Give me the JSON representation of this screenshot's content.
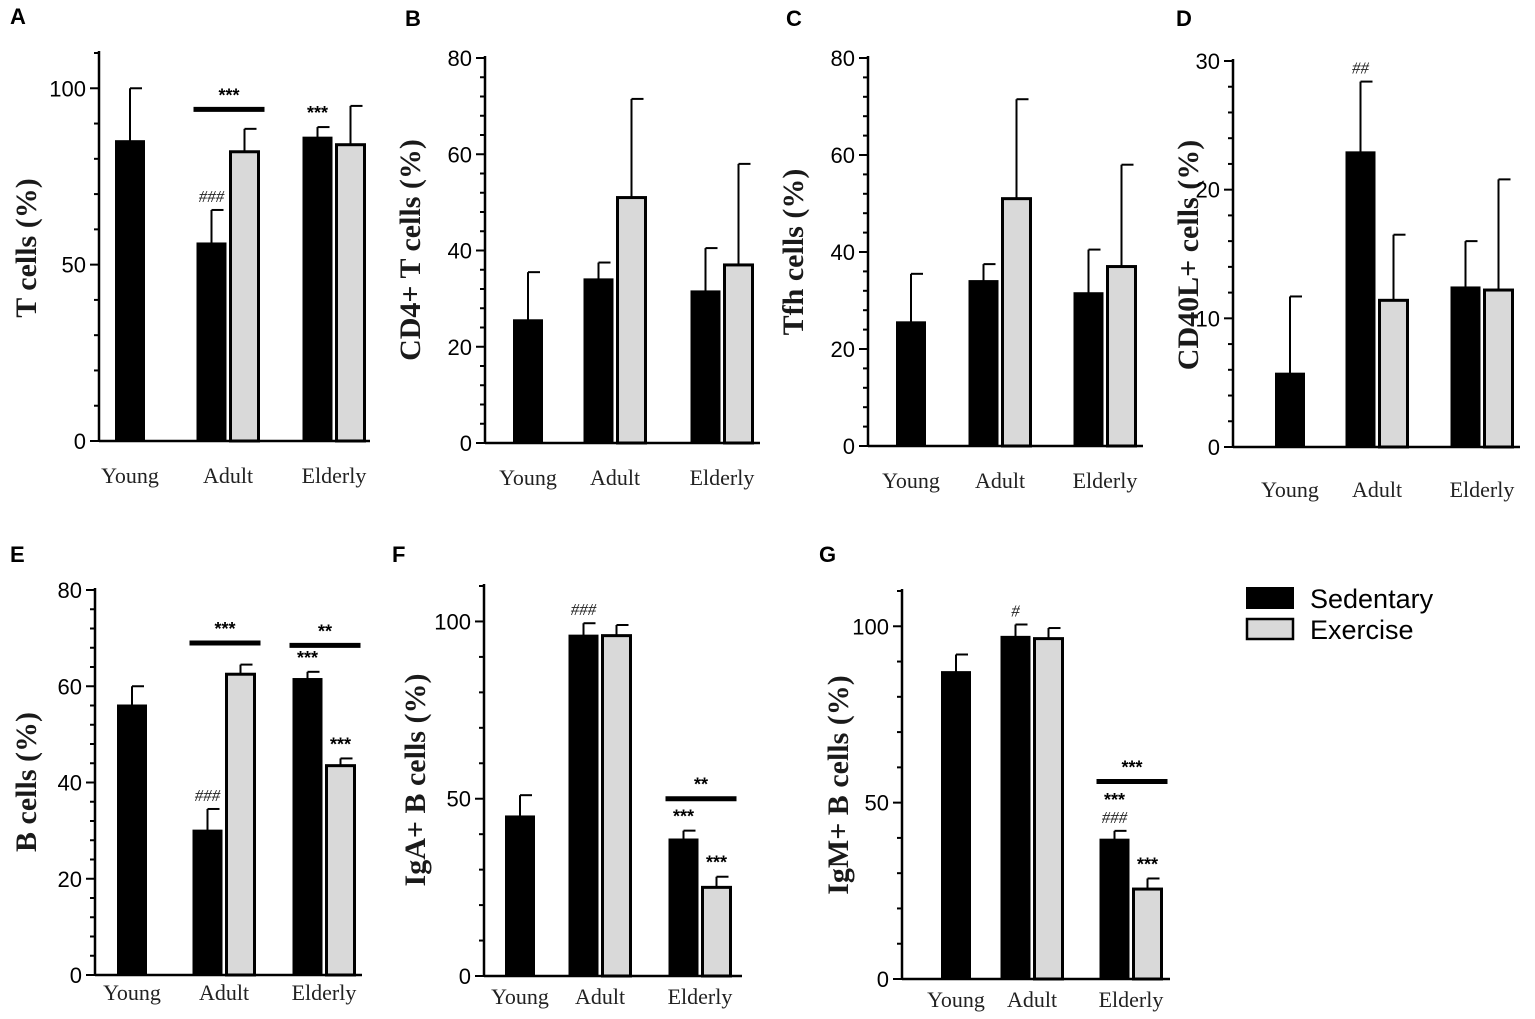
{
  "legend": {
    "items": [
      {
        "label": "Sedentary",
        "color": "#000000"
      },
      {
        "label": "Exercise",
        "color": "#d9d9d9"
      }
    ]
  },
  "chart_data": [
    {
      "panel": "A",
      "type": "bar",
      "ylabel": "T cells (%)",
      "ylim": [
        0,
        110
      ],
      "yticks": [
        0,
        50,
        100
      ],
      "categories": [
        "Young",
        "Adult",
        "Elderly"
      ],
      "series": [
        {
          "name": "Sedentary",
          "values": [
            85,
            56,
            86
          ],
          "errors": [
            15,
            9.5,
            3
          ]
        },
        {
          "name": "Exercise",
          "values": [
            null,
            82,
            84
          ],
          "errors": [
            null,
            6.5,
            11
          ]
        }
      ],
      "annotations": [
        {
          "text": "***",
          "kind": "bracket",
          "group": 1,
          "y": 94
        },
        {
          "text": "###",
          "kind": "mark",
          "group": 1,
          "series": 0
        },
        {
          "text": "***",
          "kind": "mark",
          "group": 2,
          "series": 0
        }
      ]
    },
    {
      "panel": "B",
      "type": "bar",
      "ylabel": "CD4+ T cells (%)",
      "ylim": [
        0,
        80
      ],
      "yticks": [
        0,
        20,
        40,
        60,
        80
      ],
      "categories": [
        "Young",
        "Adult",
        "Elderly"
      ],
      "series": [
        {
          "name": "Sedentary",
          "values": [
            25.5,
            34,
            31.5
          ],
          "errors": [
            10,
            3.5,
            9
          ]
        },
        {
          "name": "Exercise",
          "values": [
            null,
            51,
            37
          ],
          "errors": [
            null,
            20.5,
            21
          ]
        }
      ],
      "annotations": []
    },
    {
      "panel": "C",
      "type": "bar",
      "ylabel": "Tfh cells (%)",
      "ylim": [
        0,
        80
      ],
      "yticks": [
        0,
        20,
        40,
        60,
        80
      ],
      "categories": [
        "Young",
        "Adult",
        "Elderly"
      ],
      "series": [
        {
          "name": "Sedentary",
          "values": [
            25.5,
            34,
            31.5
          ],
          "errors": [
            10,
            3.5,
            9
          ]
        },
        {
          "name": "Exercise",
          "values": [
            null,
            51,
            37
          ],
          "errors": [
            null,
            20.5,
            21
          ]
        }
      ],
      "annotations": []
    },
    {
      "panel": "D",
      "type": "bar",
      "ylabel": "CD40L+ cells (%)",
      "ylim": [
        0,
        30
      ],
      "yticks": [
        0,
        10,
        20,
        30
      ],
      "categories": [
        "Young",
        "Adult",
        "Elderly"
      ],
      "series": [
        {
          "name": "Sedentary",
          "values": [
            5.7,
            22.9,
            12.4
          ],
          "errors": [
            6,
            5.5,
            3.6
          ]
        },
        {
          "name": "Exercise",
          "values": [
            null,
            11.4,
            12.2
          ],
          "errors": [
            null,
            5.1,
            8.6
          ]
        }
      ],
      "annotations": [
        {
          "text": "##",
          "kind": "mark",
          "group": 1,
          "series": 0
        }
      ]
    },
    {
      "panel": "E",
      "type": "bar",
      "ylabel": "B cells (%)",
      "ylim": [
        0,
        80
      ],
      "yticks": [
        0,
        20,
        40,
        60,
        80
      ],
      "categories": [
        "Young",
        "Adult",
        "Elderly"
      ],
      "series": [
        {
          "name": "Sedentary",
          "values": [
            56,
            30,
            61.5
          ],
          "errors": [
            4,
            4.5,
            1.5
          ]
        },
        {
          "name": "Exercise",
          "values": [
            null,
            62.5,
            43.5
          ],
          "errors": [
            null,
            2,
            1.5
          ]
        }
      ],
      "annotations": [
        {
          "text": "***",
          "kind": "bracket",
          "group": 1,
          "y": 69
        },
        {
          "text": "**",
          "kind": "bracket",
          "group": 2,
          "y": 68.5
        },
        {
          "text": "###",
          "kind": "mark",
          "group": 1,
          "series": 0
        },
        {
          "text": "***",
          "kind": "mark",
          "group": 2,
          "series": 0
        },
        {
          "text": "***",
          "kind": "mark",
          "group": 2,
          "series": 1
        }
      ]
    },
    {
      "panel": "F",
      "type": "bar",
      "ylabel": "IgA+ B cells (%)",
      "ylim": [
        0,
        110
      ],
      "yticks": [
        0,
        50,
        100
      ],
      "categories": [
        "Young",
        "Adult",
        "Elderly"
      ],
      "series": [
        {
          "name": "Sedentary",
          "values": [
            45,
            96,
            38.5
          ],
          "errors": [
            6,
            3.5,
            2.5
          ]
        },
        {
          "name": "Exercise",
          "values": [
            null,
            96,
            25
          ],
          "errors": [
            null,
            3,
            3
          ]
        }
      ],
      "annotations": [
        {
          "text": "**",
          "kind": "bracket",
          "group": 2,
          "y": 50
        },
        {
          "text": "###",
          "kind": "mark",
          "group": 1,
          "series": 0
        },
        {
          "text": "***",
          "kind": "mark",
          "group": 2,
          "series": 0
        },
        {
          "text": "***",
          "kind": "mark",
          "group": 2,
          "series": 1
        }
      ]
    },
    {
      "panel": "G",
      "type": "bar",
      "ylabel": "IgM+ B cells (%)",
      "ylim": [
        0,
        110
      ],
      "yticks": [
        0,
        50,
        100
      ],
      "categories": [
        "Young",
        "Adult",
        "Elderly"
      ],
      "series": [
        {
          "name": "Sedentary",
          "values": [
            87,
            97,
            39.5
          ],
          "errors": [
            5,
            3.5,
            2.5
          ]
        },
        {
          "name": "Exercise",
          "values": [
            null,
            96.5,
            25.5
          ],
          "errors": [
            null,
            3,
            3
          ]
        }
      ],
      "annotations": [
        {
          "text": "***",
          "kind": "bracket",
          "group": 2,
          "y": 56
        },
        {
          "text": "#",
          "kind": "mark",
          "group": 1,
          "series": 0
        },
        {
          "text": "***\n###",
          "kind": "mark",
          "group": 2,
          "series": 0
        },
        {
          "text": "***",
          "kind": "mark",
          "group": 2,
          "series": 1
        }
      ]
    }
  ]
}
